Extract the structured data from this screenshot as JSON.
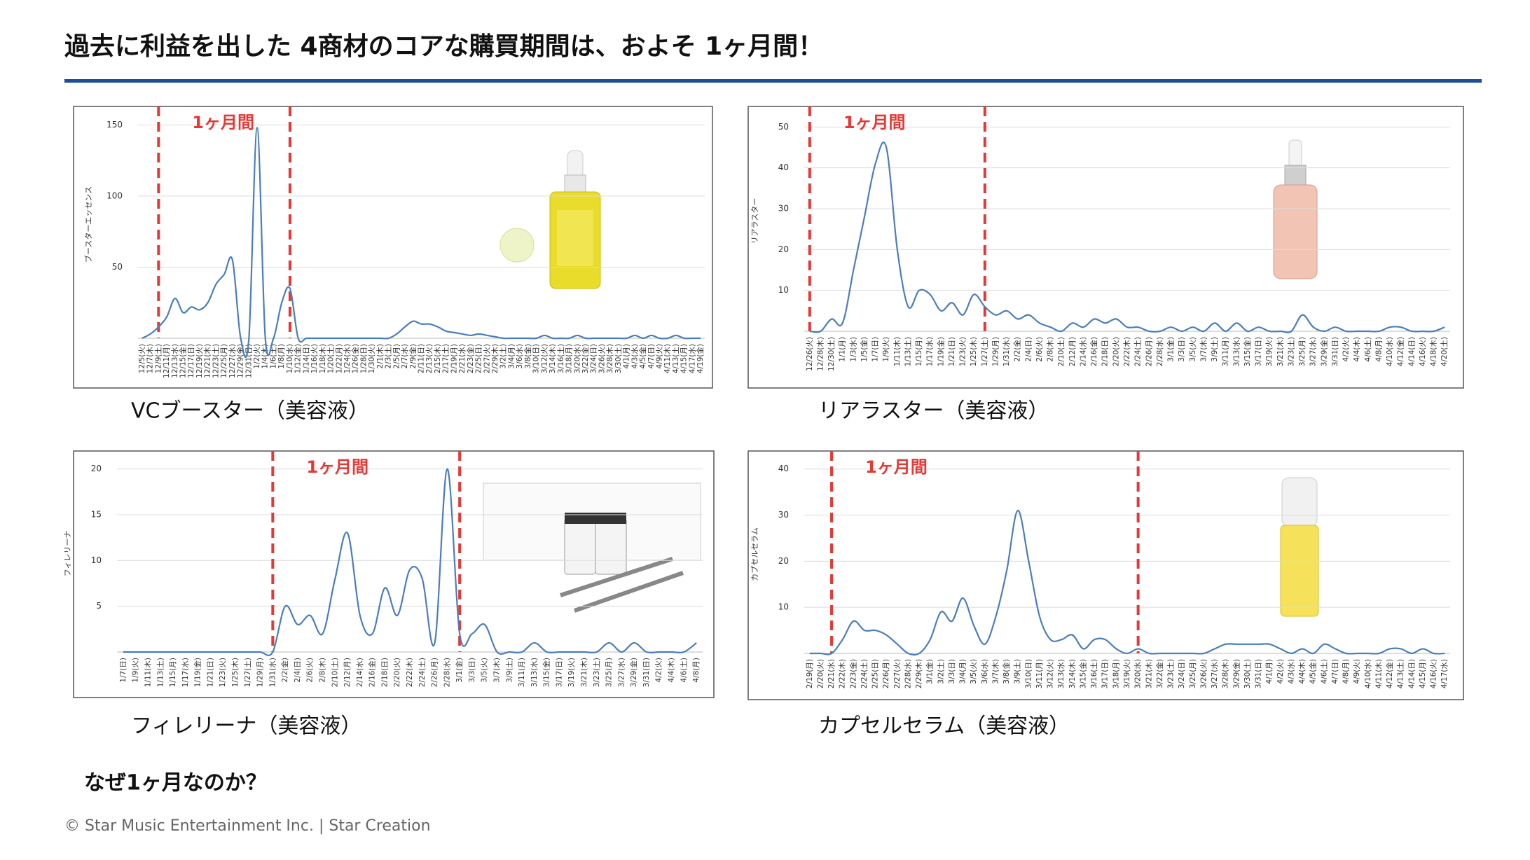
{
  "title": "過去に利益を出した 4商材のコアな購買期間は、およそ 1ヶ月間！",
  "question": "なぜ1ヶ月なのか？",
  "footer": "© Star Music Entertainment Inc. | Star Creation",
  "chart_data": [
    {
      "type": "line",
      "caption": "VCブースター（美容液）",
      "y_label": "ブースターエッセンス",
      "annotation": "1ヶ月間",
      "period": [
        2,
        18
      ],
      "color": "#4a7ebb",
      "period_color": "#e53935",
      "grid": true,
      "ylim": [
        0,
        160
      ],
      "yticks": [
        50,
        100,
        150
      ],
      "categories": [
        "12/5(火)",
        "12/7(木)",
        "12/9(土)",
        "12/11(月)",
        "12/13(水)",
        "12/15(金)",
        "12/17(日)",
        "12/19(火)",
        "12/21(木)",
        "12/23(土)",
        "12/25(月)",
        "12/27(水)",
        "12/29(金)",
        "12/31(日)",
        "1/2(火)",
        "1/4(木)",
        "1/6(土)",
        "1/8(月)",
        "1/10(水)",
        "1/12(金)",
        "1/14(日)",
        "1/16(火)",
        "1/18(木)",
        "1/20(土)",
        "1/22(月)",
        "1/24(水)",
        "1/26(金)",
        "1/28(日)",
        "1/30(火)",
        "2/1(木)",
        "2/3(土)",
        "2/5(月)",
        "2/7(水)",
        "2/9(金)",
        "2/11(日)",
        "2/13(火)",
        "2/15(木)",
        "2/17(土)",
        "2/19(月)",
        "2/21(水)",
        "2/23(金)",
        "2/25(日)",
        "2/27(火)",
        "2/29(木)",
        "3/2(土)",
        "3/4(月)",
        "3/6(水)",
        "3/8(金)",
        "3/10(日)",
        "3/12(火)",
        "3/14(木)",
        "3/16(土)",
        "3/18(月)",
        "3/20(水)",
        "3/22(金)",
        "3/24(日)",
        "3/26(火)",
        "3/28(木)",
        "3/30(土)",
        "4/1(月)",
        "4/3(水)",
        "4/5(金)",
        "4/7(日)",
        "4/9(火)",
        "4/11(木)",
        "4/13(土)",
        "4/15(月)",
        "4/17(水)",
        "4/19(金)"
      ],
      "values": [
        0,
        3,
        8,
        15,
        28,
        18,
        22,
        20,
        25,
        38,
        45,
        55,
        0,
        0,
        148,
        0,
        0,
        25,
        35,
        0,
        0,
        0,
        0,
        0,
        0,
        0,
        0,
        0,
        0,
        0,
        0,
        3,
        8,
        12,
        10,
        10,
        8,
        5,
        4,
        3,
        2,
        3,
        2,
        1,
        0,
        0,
        0,
        0,
        0,
        2,
        0,
        0,
        0,
        2,
        0,
        0,
        0,
        0,
        0,
        0,
        2,
        0,
        2,
        0,
        0,
        2,
        0,
        0,
        0
      ]
    },
    {
      "type": "line",
      "caption": "リアラスター（美容液）",
      "y_label": "リアラスター",
      "annotation": "1ヶ月間",
      "period": [
        0,
        16
      ],
      "color": "#4a7ebb",
      "period_color": "#e53935",
      "grid": true,
      "ylim": [
        0,
        54
      ],
      "yticks": [
        10,
        20,
        30,
        40,
        50
      ],
      "categories": [
        "12/26(火)",
        "12/28(木)",
        "12/30(土)",
        "1/1(月)",
        "1/3(水)",
        "1/5(金)",
        "1/7(日)",
        "1/9(火)",
        "1/11(木)",
        "1/13(土)",
        "1/15(月)",
        "1/17(水)",
        "1/19(金)",
        "1/21(日)",
        "1/23(火)",
        "1/25(木)",
        "1/27(土)",
        "1/29(月)",
        "1/31(水)",
        "2/2(金)",
        "2/4(日)",
        "2/6(火)",
        "2/8(木)",
        "2/10(土)",
        "2/12(月)",
        "2/14(水)",
        "2/16(金)",
        "2/18(日)",
        "2/20(火)",
        "2/22(木)",
        "2/24(土)",
        "2/26(月)",
        "2/28(水)",
        "3/1(金)",
        "3/3(日)",
        "3/5(火)",
        "3/7(木)",
        "3/9(土)",
        "3/11(月)",
        "3/13(水)",
        "3/15(金)",
        "3/17(日)",
        "3/19(火)",
        "3/21(木)",
        "3/23(土)",
        "3/25(月)",
        "3/27(水)",
        "3/29(金)",
        "3/31(日)",
        "4/2(火)",
        "4/4(木)",
        "4/6(土)",
        "4/8(月)",
        "4/10(水)",
        "4/12(金)",
        "4/14(日)",
        "4/16(火)",
        "4/18(木)",
        "4/20(土)"
      ],
      "values": [
        0,
        0,
        3,
        2,
        15,
        28,
        41,
        45,
        20,
        6,
        10,
        9,
        5,
        7,
        4,
        9,
        6,
        4,
        5,
        3,
        4,
        2,
        1,
        0,
        2,
        1,
        3,
        2,
        3,
        1,
        1,
        0,
        0,
        1,
        0,
        1,
        0,
        2,
        0,
        2,
        0,
        1,
        0,
        0,
        0,
        4,
        1,
        0,
        1,
        0,
        0,
        0,
        0,
        1,
        1,
        0,
        0,
        0,
        1
      ]
    },
    {
      "type": "line",
      "caption": "フィレリーナ（美容液）",
      "y_label": "フィレリーナ",
      "annotation": "1ヶ月間",
      "period": [
        12,
        27
      ],
      "color": "#4a7ebb",
      "period_color": "#e53935",
      "grid": true,
      "ylim": [
        0,
        21.5
      ],
      "yticks": [
        5,
        10,
        15,
        20
      ],
      "categories": [
        "1/7(日)",
        "1/9(火)",
        "1/11(木)",
        "1/13(土)",
        "1/15(月)",
        "1/17(水)",
        "1/19(金)",
        "1/21(日)",
        "1/23(火)",
        "1/25(木)",
        "1/27(土)",
        "1/29(月)",
        "1/31(水)",
        "2/2(金)",
        "2/4(日)",
        "2/6(火)",
        "2/8(木)",
        "2/10(土)",
        "2/12(月)",
        "2/14(水)",
        "2/16(金)",
        "2/18(日)",
        "2/20(火)",
        "2/22(木)",
        "2/24(土)",
        "2/26(月)",
        "2/28(水)",
        "3/1(金)",
        "3/3(日)",
        "3/5(火)",
        "3/7(木)",
        "3/9(土)",
        "3/11(月)",
        "3/13(水)",
        "3/15(金)",
        "3/17(日)",
        "3/19(火)",
        "3/21(木)",
        "3/23(土)",
        "3/25(月)",
        "3/27(水)",
        "3/29(金)",
        "3/31(日)",
        "4/2(火)",
        "4/4(木)",
        "4/6(土)",
        "4/8(月)"
      ],
      "values": [
        0,
        0,
        0,
        0,
        0,
        0,
        0,
        0,
        0,
        0,
        0,
        0,
        0,
        5,
        3,
        4,
        2,
        8,
        13,
        4,
        2,
        7,
        4,
        9,
        8,
        1,
        20,
        2,
        2,
        3,
        0,
        0,
        0,
        1,
        0,
        0,
        0,
        0,
        0,
        1,
        0,
        1,
        0,
        0,
        0,
        0,
        1
      ]
    },
    {
      "type": "line",
      "caption": "カプセルセラム（美容液）",
      "y_label": "カプセルセラム",
      "annotation": "1ヶ月間",
      "period": [
        2,
        30
      ],
      "color": "#4a7ebb",
      "period_color": "#e53935",
      "grid": true,
      "ylim": [
        0,
        43
      ],
      "yticks": [
        10,
        20,
        30,
        40
      ],
      "categories": [
        "2/19(月)",
        "2/20(火)",
        "2/21(水)",
        "2/22(木)",
        "2/23(金)",
        "2/24(土)",
        "2/25(日)",
        "2/26(月)",
        "2/27(火)",
        "2/28(水)",
        "2/29(木)",
        "3/1(金)",
        "3/2(土)",
        "3/3(日)",
        "3/4(月)",
        "3/5(火)",
        "3/6(水)",
        "3/7(木)",
        "3/8(金)",
        "3/9(土)",
        "3/10(日)",
        "3/11(月)",
        "3/12(火)",
        "3/13(水)",
        "3/14(木)",
        "3/15(金)",
        "3/16(土)",
        "3/17(日)",
        "3/18(月)",
        "3/19(火)",
        "3/20(水)",
        "3/21(木)",
        "3/22(金)",
        "3/23(土)",
        "3/24(日)",
        "3/25(月)",
        "3/26(火)",
        "3/27(水)",
        "3/28(木)",
        "3/29(金)",
        "3/30(土)",
        "3/31(日)",
        "4/1(月)",
        "4/2(火)",
        "4/3(水)",
        "4/4(木)",
        "4/5(金)",
        "4/6(土)",
        "4/7(日)",
        "4/8(月)",
        "4/9(火)",
        "4/10(水)",
        "4/11(木)",
        "4/12(金)",
        "4/13(土)",
        "4/14(日)",
        "4/15(月)",
        "4/16(火)",
        "4/17(水)"
      ],
      "values": [
        0,
        0,
        0,
        3,
        7,
        5,
        5,
        4,
        2,
        0,
        0,
        3,
        9,
        7,
        12,
        6,
        2,
        8,
        18,
        31,
        20,
        8,
        3,
        3,
        4,
        1,
        3,
        3,
        1,
        0,
        1,
        0,
        0,
        0,
        0,
        0,
        0,
        1,
        2,
        2,
        2,
        2,
        2,
        1,
        0,
        1,
        0,
        2,
        1,
        0,
        0,
        0,
        0,
        1,
        1,
        0,
        1,
        0,
        0
      ]
    }
  ]
}
